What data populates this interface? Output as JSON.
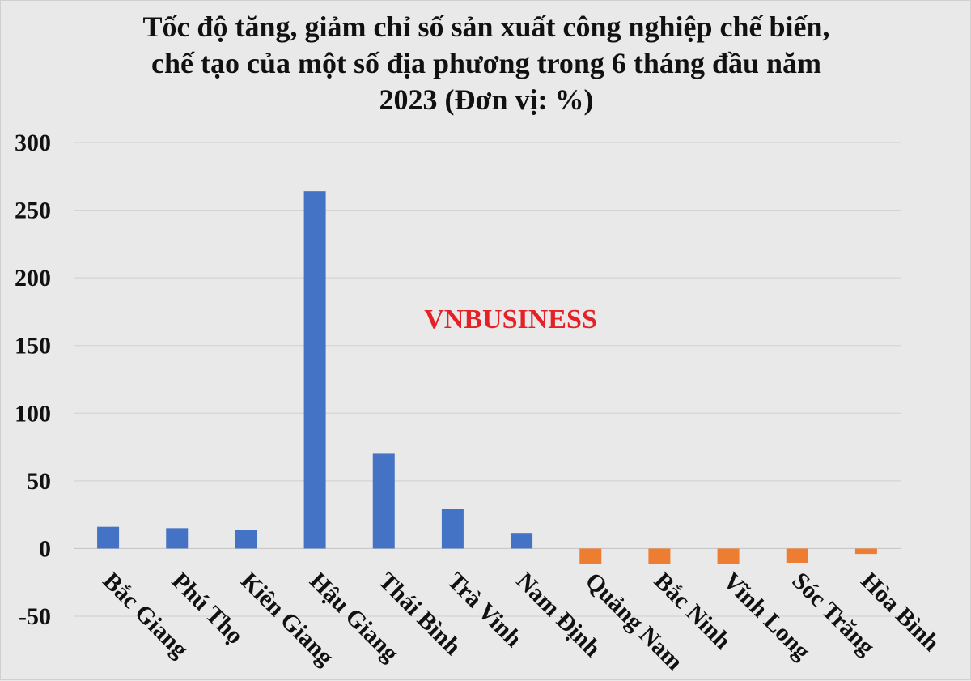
{
  "chart_data": {
    "type": "bar",
    "title_lines": [
      "Tốc độ tăng, giảm chỉ số sản xuất công nghiệp chế biến,",
      "chế tạo của một số địa phương trong 6 tháng đầu năm",
      "2023  (Đơn vị: %)"
    ],
    "categories": [
      "Bắc Giang",
      "Phú Thọ",
      "Kiên Giang",
      "Hậu Giang",
      "Thái Bình",
      "Trà Vinh",
      "Nam Định",
      "Quảng Nam",
      "Bắc Ninh",
      "Vĩnh Long",
      "Sóc Trăng",
      "Hòa Bình"
    ],
    "values": [
      16,
      15,
      13.5,
      264,
      70,
      29,
      11.5,
      -11.5,
      -11.5,
      -11.5,
      -10.5,
      -4
    ],
    "ylim": [
      -50,
      300
    ],
    "yticks": [
      300,
      250,
      200,
      150,
      100,
      50,
      0,
      -50
    ],
    "grid": true,
    "legend": "none",
    "colors": {
      "positive": "#4472c4",
      "negative": "#ed7d31",
      "grid": "#d4d4d4",
      "background": "#e9e9e9"
    },
    "watermark": "VNBUSINESS"
  }
}
